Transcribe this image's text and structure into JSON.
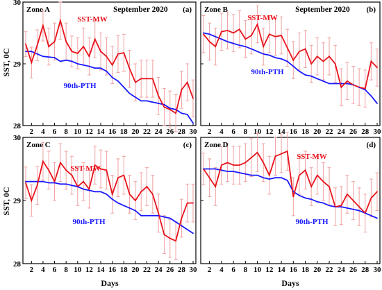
{
  "figure": {
    "ylabel": "SST,  0C",
    "xlabel": "Days",
    "series_colors": {
      "SST-MW": "#e8121b",
      "90th-PTH": "#1a1aff"
    },
    "error_color": "#f0a0a0"
  },
  "chart_data": [
    {
      "type": "line",
      "zone": "Zone A",
      "title": "September 2020",
      "panel_label": "(a)",
      "xlim": [
        1,
        30
      ],
      "ylim": [
        28,
        30
      ],
      "xticks": [
        2,
        4,
        6,
        8,
        10,
        12,
        14,
        16,
        18,
        20,
        22,
        24,
        26,
        28,
        30
      ],
      "yticks": [
        28,
        29,
        30
      ],
      "x": [
        1,
        2,
        3,
        4,
        5,
        6,
        7,
        8,
        9,
        10,
        11,
        12,
        13,
        14,
        15,
        16,
        17,
        18,
        19,
        20,
        21,
        22,
        23,
        24,
        25,
        26,
        27,
        28,
        29,
        30
      ],
      "series": [
        {
          "name": "SST-MW",
          "values": [
            29.32,
            29.02,
            29.3,
            29.62,
            29.28,
            29.36,
            29.7,
            29.36,
            29.2,
            29.17,
            29.28,
            29.12,
            29.4,
            29.2,
            29.12,
            28.98,
            29.16,
            29.18,
            28.92,
            28.7,
            28.76,
            28.76,
            28.76,
            28.48,
            28.3,
            28.26,
            28.2,
            28.58,
            28.7,
            28.44
          ],
          "error": [
            0.2,
            0.25,
            0.25,
            0.25,
            0.3,
            0.3,
            0.3,
            0.3,
            0.25,
            0.25,
            0.3,
            0.3,
            0.3,
            0.3,
            0.3,
            0.3,
            0.3,
            0.3,
            0.3,
            0.3,
            0.3,
            0.3,
            0.3,
            0.3,
            0.3,
            0.3,
            0.3,
            0.3,
            0.3,
            0.3
          ]
        },
        {
          "name": "90th-PTH",
          "values": [
            29.2,
            29.2,
            29.16,
            29.12,
            29.11,
            29.1,
            29.04,
            29.06,
            29.04,
            29.0,
            28.98,
            28.96,
            28.93,
            28.93,
            28.88,
            28.78,
            28.72,
            28.62,
            28.52,
            28.46,
            28.4,
            28.4,
            28.38,
            28.36,
            28.34,
            28.28,
            28.26,
            28.2,
            28.18,
            28.04
          ]
        }
      ]
    },
    {
      "type": "line",
      "zone": "Zone B",
      "title": "September 2020",
      "panel_label": "(b)",
      "xlim": [
        1,
        30
      ],
      "ylim": [
        28,
        30
      ],
      "xticks": [
        2,
        4,
        6,
        8,
        10,
        12,
        14,
        16,
        18,
        20,
        22,
        24,
        26,
        28,
        30
      ],
      "yticks": [
        28,
        29,
        30
      ],
      "x": [
        1,
        2,
        3,
        4,
        5,
        6,
        7,
        8,
        9,
        10,
        11,
        12,
        13,
        14,
        15,
        16,
        17,
        18,
        19,
        20,
        21,
        22,
        23,
        24,
        25,
        26,
        27,
        28,
        29,
        30
      ],
      "series": [
        {
          "name": "SST-MW",
          "values": [
            29.48,
            29.36,
            29.28,
            29.52,
            29.54,
            29.5,
            29.56,
            29.4,
            29.46,
            29.64,
            29.28,
            29.48,
            29.44,
            29.46,
            29.26,
            29.06,
            29.2,
            29.24,
            29.0,
            29.12,
            29.04,
            29.12,
            29.0,
            28.62,
            28.72,
            28.66,
            28.62,
            28.6,
            29.04,
            28.94
          ],
          "error": [
            0.3,
            0.3,
            0.3,
            0.3,
            0.3,
            0.3,
            0.3,
            0.3,
            0.3,
            0.3,
            0.3,
            0.3,
            0.3,
            0.3,
            0.3,
            0.3,
            0.3,
            0.3,
            0.3,
            0.3,
            0.3,
            0.3,
            0.3,
            0.3,
            0.3,
            0.3,
            0.3,
            0.3,
            0.3,
            0.3
          ]
        },
        {
          "name": "90th-PTH",
          "values": [
            29.5,
            29.48,
            29.44,
            29.4,
            29.36,
            29.33,
            29.3,
            29.28,
            29.24,
            29.2,
            29.16,
            29.14,
            29.1,
            29.08,
            29.04,
            28.96,
            28.88,
            28.82,
            28.8,
            28.76,
            28.72,
            28.68,
            28.68,
            28.68,
            28.68,
            28.66,
            28.62,
            28.58,
            28.48,
            28.36
          ]
        }
      ]
    },
    {
      "type": "line",
      "zone": "Zone C",
      "title": "",
      "panel_label": "(c)",
      "xlim": [
        1,
        30
      ],
      "ylim": [
        28,
        30
      ],
      "xticks": [
        2,
        4,
        6,
        8,
        10,
        12,
        14,
        16,
        18,
        20,
        22,
        24,
        26,
        28,
        30
      ],
      "yticks": [
        28,
        29,
        30
      ],
      "x": [
        1,
        2,
        3,
        4,
        5,
        6,
        7,
        8,
        9,
        10,
        11,
        12,
        13,
        14,
        15,
        16,
        17,
        18,
        19,
        20,
        21,
        22,
        23,
        24,
        25,
        26,
        27,
        28,
        29,
        30
      ],
      "series": [
        {
          "name": "SST-MW",
          "values": [
            29.28,
            29.0,
            29.24,
            29.62,
            29.48,
            29.3,
            29.6,
            29.48,
            29.4,
            29.22,
            29.3,
            29.18,
            29.56,
            29.5,
            29.48,
            29.1,
            29.36,
            29.4,
            29.1,
            29.0,
            29.14,
            29.22,
            29.1,
            28.8,
            28.46,
            28.4,
            28.36,
            28.72,
            28.96,
            28.96
          ],
          "error": [
            0.25,
            0.25,
            0.3,
            0.3,
            0.3,
            0.3,
            0.3,
            0.3,
            0.3,
            0.3,
            0.3,
            0.3,
            0.3,
            0.3,
            0.3,
            0.3,
            0.3,
            0.3,
            0.3,
            0.3,
            0.3,
            0.3,
            0.3,
            0.3,
            0.3,
            0.3,
            0.3,
            0.3,
            0.3,
            0.3
          ]
        },
        {
          "name": "90th-PTH",
          "values": [
            29.3,
            29.3,
            29.3,
            29.3,
            29.28,
            29.28,
            29.26,
            29.26,
            29.24,
            29.22,
            29.18,
            29.16,
            29.14,
            29.14,
            29.1,
            29.02,
            28.96,
            28.92,
            28.88,
            28.84,
            28.76,
            28.76,
            28.76,
            28.76,
            28.74,
            28.72,
            28.66,
            28.6,
            28.54,
            28.48
          ]
        }
      ]
    },
    {
      "type": "line",
      "zone": "Zone D",
      "title": "",
      "panel_label": "(d)",
      "xlim": [
        1,
        30
      ],
      "ylim": [
        28,
        30
      ],
      "xticks": [
        2,
        4,
        6,
        8,
        10,
        12,
        14,
        16,
        18,
        20,
        22,
        24,
        26,
        28,
        30
      ],
      "yticks": [
        28,
        29,
        30
      ],
      "x": [
        1,
        2,
        3,
        4,
        5,
        6,
        7,
        8,
        9,
        10,
        11,
        12,
        13,
        14,
        15,
        16,
        17,
        18,
        19,
        20,
        21,
        22,
        23,
        24,
        25,
        26,
        27,
        28,
        29,
        30
      ],
      "series": [
        {
          "name": "SST-MW",
          "values": [
            29.5,
            29.36,
            29.22,
            29.56,
            29.6,
            29.56,
            29.56,
            29.6,
            29.68,
            29.76,
            29.6,
            29.4,
            29.7,
            29.74,
            29.78,
            29.06,
            29.4,
            29.48,
            29.22,
            29.4,
            29.3,
            29.22,
            28.9,
            28.92,
            29.1,
            29.0,
            28.9,
            28.8,
            29.04,
            29.14
          ],
          "error": [
            0.25,
            0.3,
            0.3,
            0.3,
            0.3,
            0.3,
            0.3,
            0.3,
            0.3,
            0.3,
            0.3,
            0.3,
            0.3,
            0.3,
            0.3,
            0.3,
            0.3,
            0.3,
            0.3,
            0.3,
            0.3,
            0.3,
            0.3,
            0.3,
            0.3,
            0.3,
            0.3,
            0.3,
            0.3,
            0.3
          ]
        },
        {
          "name": "90th-PTH",
          "values": [
            29.5,
            29.5,
            29.5,
            29.48,
            29.46,
            29.46,
            29.44,
            29.42,
            29.4,
            29.4,
            29.36,
            29.34,
            29.36,
            29.36,
            29.32,
            29.14,
            29.08,
            29.04,
            29.02,
            28.98,
            28.96,
            28.92,
            28.9,
            28.9,
            28.88,
            28.86,
            28.84,
            28.8,
            28.76,
            28.72
          ]
        }
      ]
    }
  ]
}
